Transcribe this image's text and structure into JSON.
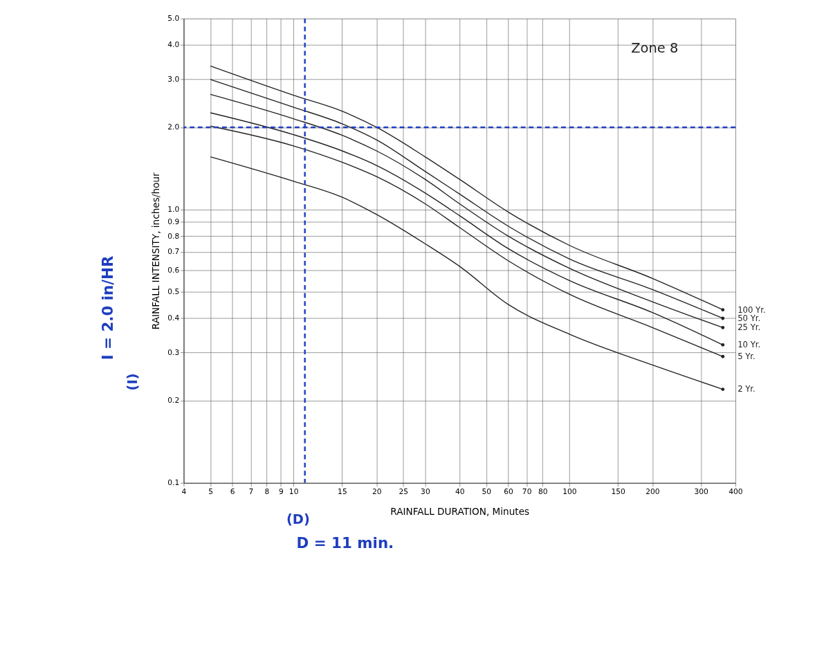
{
  "chart_data": {
    "type": "line",
    "xlabel": "RAINFALL DURATION, Minutes",
    "ylabel": "RAINFALL INTENSITY, inches/hour",
    "log": "xy",
    "grid": true,
    "xlim": [
      4,
      400
    ],
    "xticks": [
      4,
      5,
      6,
      7,
      8,
      9,
      10,
      15,
      20,
      25,
      30,
      40,
      50,
      60,
      70,
      80,
      100,
      150,
      200,
      300,
      400
    ],
    "ylim": [
      0.1,
      5.0
    ],
    "yticks": [
      0.1,
      0.2,
      0.3,
      0.4,
      0.5,
      0.6,
      0.7,
      0.8,
      0.9,
      {
        "value": 1,
        "label": "1.0"
      },
      {
        "value": 2,
        "label": "2.0"
      },
      {
        "value": 3,
        "label": "3.0"
      },
      {
        "value": 4,
        "label": "4.0"
      },
      {
        "value": 5,
        "label": "5.0"
      }
    ],
    "x": [
      5,
      10,
      15,
      20,
      30,
      40,
      60,
      100,
      200,
      360
    ],
    "series": [
      {
        "name": "100 Yr.",
        "color": "#222222",
        "values": [
          3.35,
          2.62,
          2.29,
          2.0,
          1.56,
          1.29,
          0.98,
          0.74,
          0.56,
          0.43
        ]
      },
      {
        "name": "50 Yr.",
        "color": "#222222",
        "values": [
          2.99,
          2.37,
          2.06,
          1.8,
          1.38,
          1.14,
          0.87,
          0.66,
          0.51,
          0.4
        ]
      },
      {
        "name": "25 Yr.",
        "color": "#222222",
        "values": [
          2.64,
          2.15,
          1.87,
          1.64,
          1.29,
          1.05,
          0.8,
          0.61,
          0.46,
          0.37
        ]
      },
      {
        "name": "10 Yr.",
        "color": "#222222",
        "values": [
          2.26,
          1.88,
          1.64,
          1.45,
          1.15,
          0.95,
          0.72,
          0.55,
          0.42,
          0.32
        ]
      },
      {
        "name": "5 Yr.",
        "color": "#222222",
        "values": [
          2.02,
          1.71,
          1.49,
          1.32,
          1.05,
          0.86,
          0.65,
          0.49,
          0.37,
          0.29
        ]
      },
      {
        "name": "2 Yr.",
        "color": "#222222",
        "values": [
          1.56,
          1.27,
          1.11,
          0.96,
          0.75,
          0.62,
          0.45,
          0.35,
          0.27,
          0.22
        ]
      }
    ],
    "ref_lines": [
      {
        "axis": "y",
        "value": 2.0,
        "color": "#1f3fbf",
        "line_style": "dashed"
      },
      {
        "axis": "x",
        "value": 11,
        "color": "#1f3fbf",
        "line_style": "dashed"
      }
    ],
    "annotations": [
      "Zone 8",
      "(I)",
      "I = 2.0 in/HR",
      "(D)",
      "D = 11 min."
    ]
  }
}
